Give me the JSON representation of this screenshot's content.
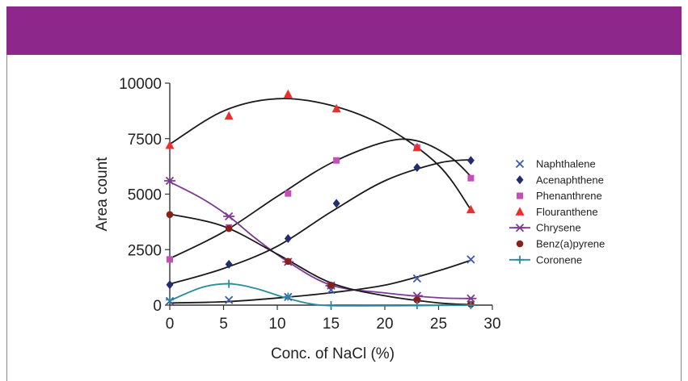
{
  "colors": {
    "header_band": "#8e278c",
    "frame": "#8a8a8a",
    "axis": "#333333",
    "fit_line": "#1a1a1a"
  },
  "chart_data": {
    "type": "scatter",
    "xlabel": "Conc. of NaCl (%)",
    "ylabel": "Area count",
    "xlim": [
      0,
      30
    ],
    "ylim": [
      0,
      10000
    ],
    "x_ticks": [
      "0",
      "5",
      "10",
      "15",
      "20",
      "25",
      "30"
    ],
    "y_ticks": [
      "0",
      "2500",
      "5000",
      "7500",
      "10000"
    ],
    "grid": false,
    "legend_position": "right",
    "series": [
      {
        "name": "Naphthalene",
        "marker": "x",
        "color": "#3a5bab",
        "line_color": "#1a1a1a",
        "x": [
          0,
          5.5,
          11,
          15,
          23,
          28
        ],
        "y": [
          180,
          230,
          370,
          680,
          1200,
          2060
        ],
        "fit_x": [
          0,
          5,
          10,
          15,
          20,
          25,
          28
        ],
        "fit_y": [
          100,
          150,
          320,
          560,
          900,
          1550,
          2020
        ]
      },
      {
        "name": "Acenaphthene",
        "marker": "diamond",
        "color": "#232c6e",
        "line_color": "#1a1a1a",
        "x": [
          0,
          5.5,
          11,
          15.5,
          23,
          28
        ],
        "y": [
          920,
          1840,
          3000,
          4580,
          6200,
          6520
        ],
        "fit_x": [
          0,
          5,
          10,
          15,
          20,
          25,
          28
        ],
        "fit_y": [
          950,
          1650,
          2650,
          4200,
          5600,
          6400,
          6550
        ]
      },
      {
        "name": "Phenanthrene",
        "marker": "square",
        "color": "#c44fb8",
        "line_color": "#1a1a1a",
        "x": [
          0,
          5.5,
          11,
          15.5,
          23,
          28
        ],
        "y": [
          2060,
          3500,
          5030,
          6520,
          7100,
          5720
        ],
        "fit_x": [
          0,
          5,
          10,
          15,
          20,
          23,
          26,
          28
        ],
        "fit_y": [
          2100,
          3300,
          4900,
          6400,
          7350,
          7400,
          6700,
          5800
        ]
      },
      {
        "name": "Flouranthene",
        "marker": "triangle",
        "color": "#e8312f",
        "line_color": "#1a1a1a",
        "x": [
          0,
          5.5,
          11,
          15.5,
          23,
          28
        ],
        "y": [
          7200,
          8520,
          9500,
          8850,
          7100,
          4300
        ],
        "fit_x": [
          0,
          5,
          10,
          15,
          20,
          25,
          28
        ],
        "fit_y": [
          7250,
          8750,
          9300,
          9000,
          8050,
          6300,
          4300
        ]
      },
      {
        "name": "Chrysene",
        "marker": "xbar",
        "color": "#7d3a93",
        "line_color": "#7d3a93",
        "x": [
          0,
          5.5,
          11,
          15,
          23,
          28
        ],
        "y": [
          5600,
          4000,
          1950,
          880,
          420,
          300
        ],
        "fit_x": [
          0,
          3,
          5.5,
          8,
          11,
          15,
          20,
          25,
          28
        ],
        "fit_y": [
          5550,
          4800,
          4000,
          3000,
          1950,
          900,
          550,
          330,
          300
        ]
      },
      {
        "name": "Benz(a)pyrene",
        "marker": "circle",
        "color": "#8a1f1a",
        "line_color": "#1a1a1a",
        "x": [
          0,
          5.5,
          11,
          15,
          23,
          28
        ],
        "y": [
          4080,
          3450,
          1970,
          900,
          230,
          40
        ],
        "fit_x": [
          0,
          5,
          10,
          15,
          20,
          25,
          28
        ],
        "fit_y": [
          4100,
          3550,
          2300,
          1000,
          420,
          100,
          20
        ]
      },
      {
        "name": "Coronene",
        "marker": "plus",
        "color": "#2b8a9e",
        "line_color": "#2b8a9e",
        "x": [
          0,
          5.5,
          11,
          15,
          23,
          28
        ],
        "y": [
          240,
          960,
          380,
          0,
          0,
          0
        ],
        "fit_x": [
          0,
          3,
          5.5,
          8,
          11,
          14,
          18,
          23,
          28
        ],
        "fit_y": [
          200,
          800,
          960,
          750,
          300,
          0,
          -30,
          -20,
          0
        ]
      }
    ]
  }
}
